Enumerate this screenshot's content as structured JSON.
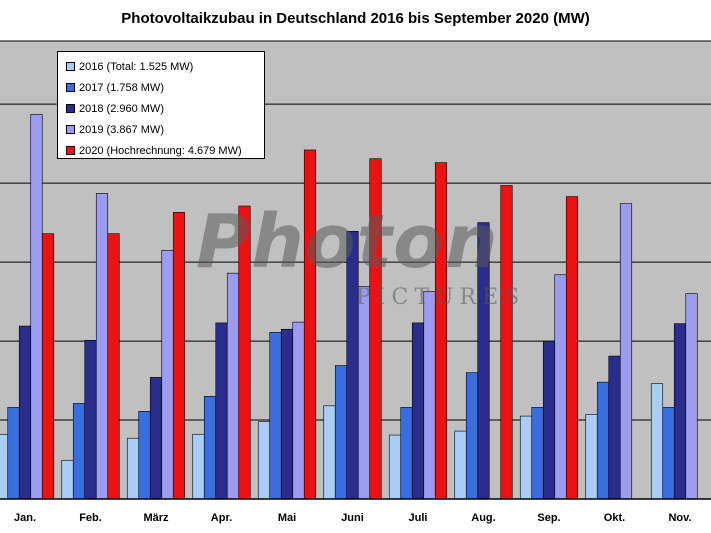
{
  "chart_data": {
    "type": "bar",
    "title": "Photovoltaikzubau in Deutschland 2016 bis September 2020 (MW)",
    "categories": [
      "Jan.",
      "Feb.",
      "März",
      "Apr.",
      "Mai",
      "Juni",
      "Juli",
      "Aug.",
      "Sep.",
      "Okt.",
      "Nov."
    ],
    "series": [
      {
        "name": "2016 (Total: 1.525 MW)",
        "color": "#a9cdf5",
        "values": [
          82,
          49,
          77,
          82,
          98,
          118,
          81,
          86,
          105,
          107,
          146
        ]
      },
      {
        "name": "2017 (1.758 MW)",
        "color": "#3a6ede",
        "values": [
          116,
          121,
          111,
          130,
          211,
          169,
          116,
          160,
          116,
          148,
          116
        ]
      },
      {
        "name": "2018 (2.960 MW)",
        "color": "#2b2d8c",
        "values": [
          219,
          201,
          154,
          223,
          215,
          339,
          223,
          350,
          200,
          181,
          222
        ]
      },
      {
        "name": "2019 (3.867 MW)",
        "color": "#9b9bf0",
        "values": [
          487,
          387,
          315,
          286,
          224,
          269,
          263,
          null,
          284,
          374,
          260
        ]
      },
      {
        "name": "2020 (Hochrechnung: 4.679 MW)",
        "color": "#ee1111",
        "values": [
          336,
          336,
          363,
          371,
          442,
          431,
          426,
          397,
          383,
          null,
          null
        ]
      }
    ],
    "ylim": [
      0,
      580
    ],
    "gridlines": [
      100,
      200,
      300,
      400,
      500
    ],
    "grid": true,
    "legend_position": "top-left"
  },
  "watermark": {
    "line1": "Photon",
    "line2": "PICTURES"
  }
}
